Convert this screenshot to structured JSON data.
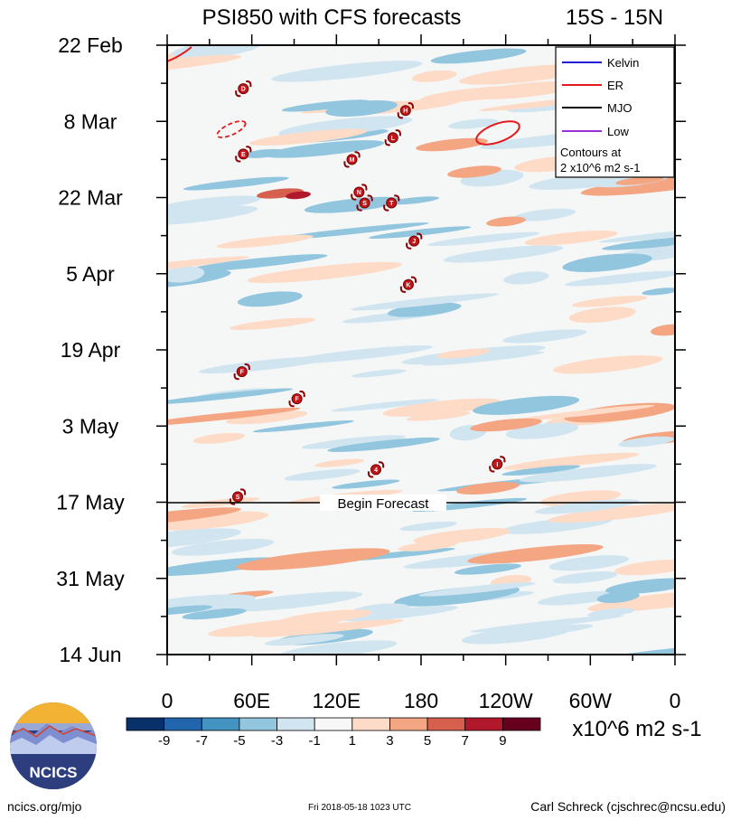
{
  "chart_data": {
    "type": "heatmap",
    "title": "PSI850 with CFS forecasts",
    "region": "15S - 15N",
    "x_ticks": [
      "0",
      "60E",
      "120E",
      "180",
      "120W",
      "60W",
      "0"
    ],
    "x_lim": [
      0,
      360
    ],
    "y_ticks": [
      "22 Feb",
      "8 Mar",
      "22 Mar",
      "5 Apr",
      "19 Apr",
      "3 May",
      "17 May",
      "31 May",
      "14 Jun"
    ],
    "y_lim_days_after_22Feb": [
      0,
      112
    ],
    "forecast_start": "17 May",
    "forecast_label": "Begin Forecast",
    "legend": {
      "entries": [
        {
          "name": "Kelvin",
          "color": "#1f1fd6"
        },
        {
          "name": "ER",
          "color": "#e41a1c"
        },
        {
          "name": "MJO",
          "color": "#000000"
        },
        {
          "name": "Low",
          "color": "#9b30d9"
        }
      ],
      "note_line1": "Contours at",
      "note_line2": "2 x10^6 m2 s-1"
    },
    "colorbar": {
      "levels": [
        "-9",
        "-7",
        "-5",
        "-3",
        "-1",
        "1",
        "3",
        "5",
        "7",
        "9"
      ],
      "colors": [
        "#08306b",
        "#2166ac",
        "#4393c3",
        "#92c5de",
        "#d1e5f0",
        "#f7f7f7",
        "#fddbc7",
        "#f4a582",
        "#d6604d",
        "#b2182b",
        "#67001f"
      ],
      "units": "x10^6 m2 s-1"
    },
    "storms": [
      {
        "label": "D",
        "lon": 54,
        "day": 8
      },
      {
        "label": "E",
        "lon": 54,
        "day": 20
      },
      {
        "label": "H",
        "lon": 169,
        "day": 12
      },
      {
        "label": "L",
        "lon": 160,
        "day": 17
      },
      {
        "label": "M",
        "lon": 131,
        "day": 21
      },
      {
        "label": "N",
        "lon": 136,
        "day": 27
      },
      {
        "label": "S",
        "lon": 140,
        "day": 29
      },
      {
        "label": "T",
        "lon": 159,
        "day": 29
      },
      {
        "label": "J",
        "lon": 175,
        "day": 36
      },
      {
        "label": "K",
        "lon": 171,
        "day": 44
      },
      {
        "label": "F",
        "lon": 53,
        "day": 60
      },
      {
        "label": "F",
        "lon": 92,
        "day": 65
      },
      {
        "label": "4",
        "lon": 148,
        "day": 78
      },
      {
        "label": "I",
        "lon": 234,
        "day": 77
      },
      {
        "label": "S",
        "lon": 50,
        "day": 83
      }
    ]
  },
  "footer": {
    "logo_text": "NCICS",
    "site": "ncics.org/mjo",
    "timestamp": "Fri 2018-05-18 1023 UTC",
    "author": "Carl Schreck (cjschrec@ncsu.edu)"
  }
}
